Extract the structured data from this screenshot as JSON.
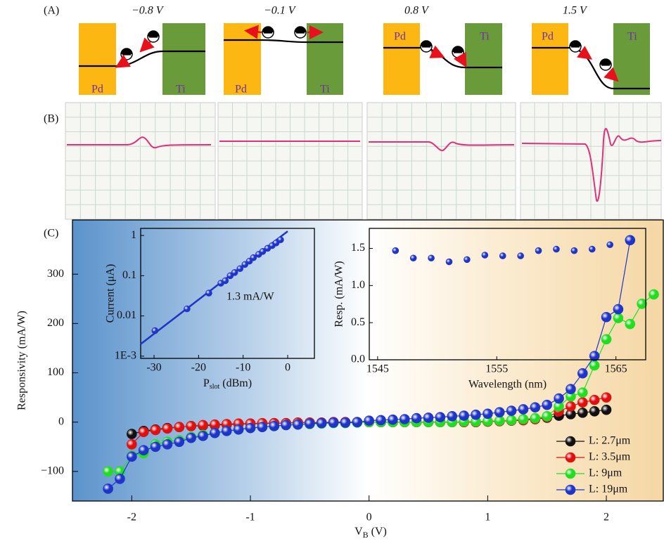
{
  "panels": {
    "A": {
      "label": "(A)",
      "diagrams": [
        {
          "voltage": "−0.8 V",
          "left": "Pd",
          "right": "Ti"
        },
        {
          "voltage": "−0.1 V",
          "left": "Pd",
          "right": "Ti"
        },
        {
          "voltage": "0.8 V",
          "left": "Pd",
          "right": "Ti"
        },
        {
          "voltage": "1.5 V",
          "left": "Pd",
          "right": "Ti"
        }
      ]
    },
    "B": {
      "label": "(B)"
    },
    "C": {
      "label": "(C)"
    }
  },
  "chart_data": [
    {
      "type": "scatter",
      "line": true,
      "legend": "lower right",
      "xlabel": {
        "text": "V",
        "sub": "B",
        "rest": " (V)"
      },
      "ylabel": "Responsivity (mA/W)",
      "x": [
        -2.2,
        -2.1,
        -2,
        -1.9,
        -1.8,
        -1.7,
        -1.6,
        -1.5,
        -1.4,
        -1.3,
        -1.2,
        -1.1,
        -1,
        -0.9,
        -0.8,
        -0.7,
        -0.6,
        -0.5,
        -0.4,
        -0.3,
        -0.2,
        -0.1,
        0,
        0.1,
        0.2,
        0.3,
        0.4,
        0.5,
        0.6,
        0.7,
        0.8,
        0.9,
        1,
        1.1,
        1.2,
        1.3,
        1.4,
        1.5,
        1.6,
        1.7,
        1.8,
        1.9,
        2,
        2.1,
        2.2,
        2.3,
        2.4
      ],
      "series": [
        {
          "name": "L: 2.7μm",
          "color": "#111111",
          "values": [
            null,
            null,
            -24,
            -18,
            -15,
            -12,
            -10,
            -8,
            -7,
            -6,
            -5,
            -4,
            -3,
            -3,
            -2,
            -2,
            -1,
            -1,
            -1,
            0,
            0,
            0,
            0,
            0,
            0,
            0,
            0,
            0,
            0,
            0,
            0,
            0,
            1,
            2,
            3,
            4,
            6,
            9,
            13,
            16,
            19,
            22,
            25,
            null,
            null,
            null,
            null
          ]
        },
        {
          "name": "L: 3.5μm",
          "color": "#e01010",
          "values": [
            null,
            null,
            -45,
            -20,
            -16,
            -13,
            -10,
            -8,
            -6,
            -5,
            -4,
            -3,
            -3,
            -2,
            -2,
            -2,
            -1,
            -1,
            -1,
            0,
            0,
            0,
            0,
            0,
            0,
            0,
            0,
            0,
            0,
            0,
            0,
            0,
            1,
            2,
            3,
            4,
            6,
            10,
            22,
            32,
            40,
            45,
            50,
            null,
            null,
            null,
            null
          ]
        },
        {
          "name": "L: 9μm",
          "color": "#22dd22",
          "values": [
            -100,
            -100,
            -68,
            -63,
            -45,
            -40,
            -37,
            -30,
            -26,
            -22,
            -18,
            -15,
            -12,
            -10,
            -8,
            -6,
            -5,
            -4,
            -3,
            -2,
            -2,
            -1,
            0,
            0,
            0,
            0,
            0,
            0,
            0,
            0,
            1,
            1,
            2,
            3,
            4,
            6,
            8,
            12,
            32,
            52,
            60,
            115,
            168,
            211,
            199,
            240,
            259
          ]
        },
        {
          "name": "L: 19μm",
          "color": "#1f35c8",
          "values": [
            -135,
            -115,
            -70,
            -57,
            -50,
            -45,
            -40,
            -32,
            -28,
            -22,
            -18,
            -15,
            -12,
            -10,
            -8,
            -6,
            -5,
            -3,
            -2,
            -1,
            -1,
            0,
            3,
            4,
            5,
            6,
            8,
            9,
            10,
            12,
            13,
            15,
            17,
            20,
            23,
            26,
            30,
            35,
            48,
            67,
            99,
            134,
            213,
            229,
            369,
            null,
            null
          ]
        }
      ],
      "xlim": [
        -2.5,
        2.48
      ],
      "ylim": [
        -160,
        410
      ],
      "xticks": [
        -2,
        -1,
        0,
        1,
        2
      ],
      "yticks": [
        {
          "value": -100,
          "label": "−100"
        },
        0,
        100,
        200,
        300
      ]
    },
    {
      "type": "scatter",
      "ylog": true,
      "xlabel": {
        "text": "P",
        "sub": "slot",
        "rest": " (dBm)"
      },
      "ylabel": "Current (μA)",
      "x": [
        -29.8,
        -22.6,
        -17.7,
        -15,
        -14,
        -12.9,
        -11.9,
        -10.7,
        -9.6,
        -8.6,
        -7.7,
        -6.5,
        -5.6,
        -4.5,
        -3.5,
        -2.6,
        -1.6
      ],
      "series": [
        {
          "color": "#1f35c8",
          "values": [
            0.0043,
            0.015,
            0.037,
            0.065,
            0.075,
            0.1,
            0.12,
            0.15,
            0.19,
            0.23,
            0.28,
            0.34,
            0.4,
            0.48,
            0.56,
            0.65,
            0.78
          ]
        }
      ],
      "fit": {
        "x": [
          -33,
          0
        ],
        "values": [
          0.002,
          1.27
        ],
        "color": "#1f35c8"
      },
      "annotation": "1.3 mA/W",
      "xlim": [
        -33,
        6
      ],
      "ylim": [
        0.00088,
        1.5
      ],
      "xticks": [
        -30,
        -20,
        -10,
        0
      ],
      "yticks": [
        {
          "value": 0.001,
          "label": "1E-3"
        },
        0.01,
        0.1,
        1
      ]
    },
    {
      "type": "scatter",
      "xlabel": "Wavelength (nm)",
      "ylabel": "Resp. (mA/W)",
      "x": [
        1546.5,
        1548,
        1549.5,
        1551,
        1552.5,
        1554,
        1555.5,
        1557,
        1558.5,
        1560,
        1561.5,
        1563,
        1564.5
      ],
      "series": [
        {
          "color": "#1f35c8",
          "values": [
            1.47,
            1.37,
            1.37,
            1.32,
            1.35,
            1.41,
            1.4,
            1.4,
            1.47,
            1.49,
            1.47,
            1.49,
            1.55
          ]
        }
      ],
      "xlim": [
        1544.3,
        1567.5
      ],
      "ylim": [
        0,
        1.77
      ],
      "xticks": [
        1545,
        1555,
        1565
      ],
      "yticks": [
        {
          "value": 0,
          "label": "0.0"
        },
        0.5,
        {
          "value": 1,
          "label": "1.0"
        },
        1.5
      ]
    }
  ]
}
